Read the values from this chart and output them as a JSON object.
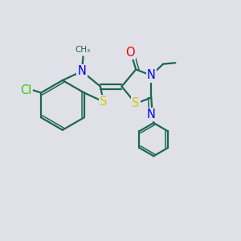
{
  "background_color": "#e0e0e8",
  "bond_color": "#1a6655",
  "atom_colors": {
    "N": "#0000ee",
    "O": "#ee0000",
    "S": "#cccc00",
    "Cl": "#33cc00"
  },
  "bond_lw": 1.6,
  "dbl_lw": 1.1,
  "label_fontsize": 10.5
}
